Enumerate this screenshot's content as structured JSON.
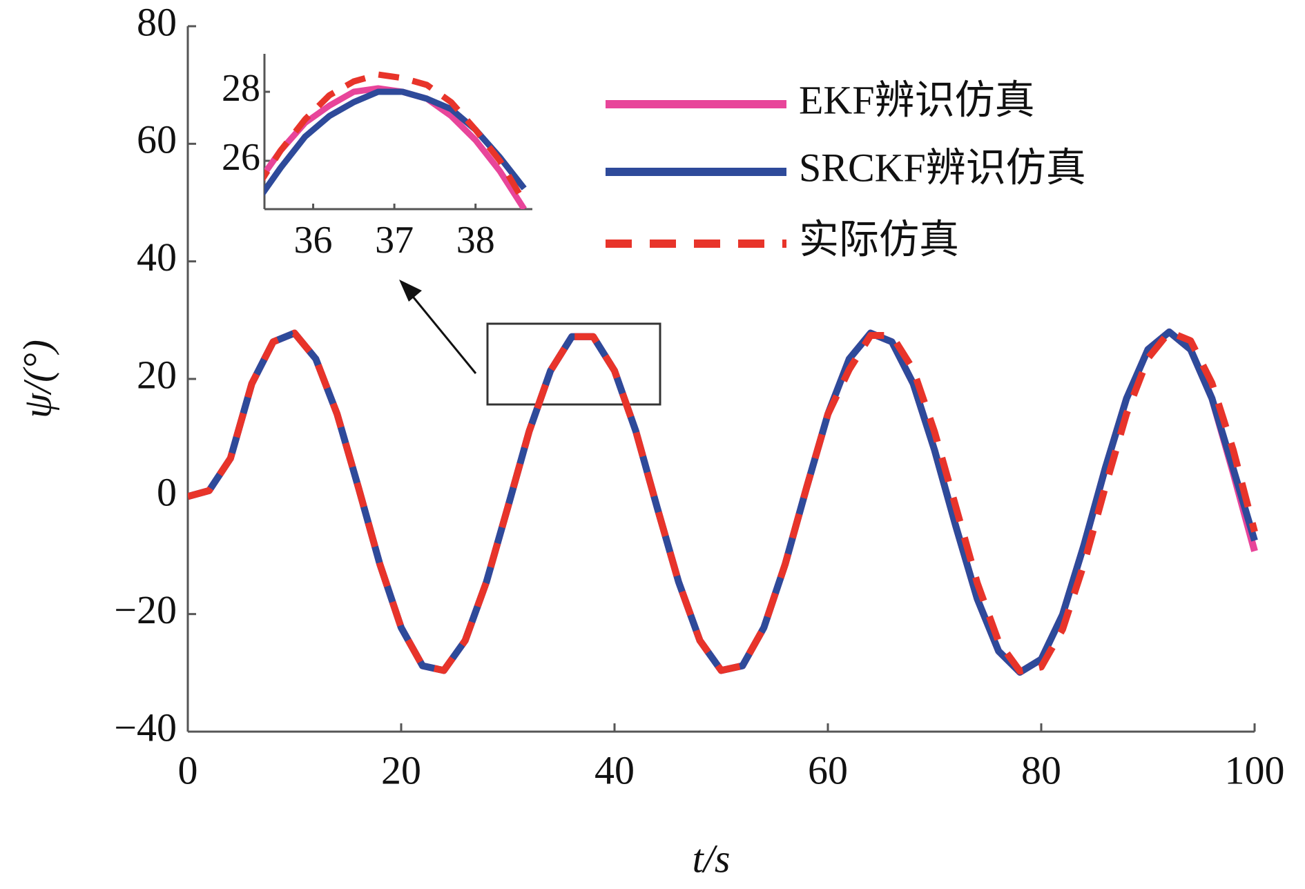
{
  "chart_data": [
    {
      "type": "line",
      "x_label": "t/s",
      "y_label": "ψ/(°)",
      "x": [
        0,
        2,
        4,
        6,
        8,
        10,
        12,
        14,
        16,
        18,
        20,
        22,
        24,
        26,
        28,
        30,
        32,
        34,
        36,
        38,
        40,
        42,
        44,
        46,
        48,
        50,
        52,
        54,
        56,
        58,
        60,
        62,
        64,
        66,
        68,
        70,
        72,
        74,
        76,
        78,
        80,
        82,
        84,
        86,
        88,
        90,
        92,
        94,
        96,
        98,
        100
      ],
      "series": [
        {
          "name": "EKF辨识仿真",
          "color": "#e8459a",
          "style": "solid",
          "values": [
            0,
            1.0,
            6.5,
            19.2,
            26.3,
            27.8,
            23.4,
            14.0,
            1.5,
            -11.5,
            -22.3,
            -28.8,
            -29.6,
            -24.5,
            -14.5,
            -1.8,
            11.1,
            21.4,
            27.2,
            27.2,
            21.4,
            11.1,
            -1.9,
            -14.5,
            -24.5,
            -29.6,
            -28.8,
            -22.3,
            -11.5,
            1.5,
            14.0,
            23.4,
            27.8,
            26.3,
            19.2,
            7.9,
            -5.1,
            -17.4,
            -26.3,
            -29.9,
            -27.7,
            -20.1,
            -8.3,
            4.8,
            16.7,
            25.0,
            28.0,
            25.0,
            16.7,
            4.0,
            -9.3
          ]
        },
        {
          "name": "SRCKF辨识仿真",
          "color": "#2e4a9a",
          "style": "solid",
          "values": [
            0,
            1.0,
            6.5,
            19.2,
            26.3,
            27.8,
            23.4,
            14.0,
            1.5,
            -11.5,
            -22.3,
            -28.8,
            -29.6,
            -24.5,
            -14.5,
            -1.8,
            11.1,
            21.4,
            27.2,
            27.2,
            21.4,
            11.1,
            -1.9,
            -14.5,
            -24.5,
            -29.6,
            -28.8,
            -22.3,
            -11.5,
            1.5,
            14.0,
            23.4,
            27.8,
            26.3,
            19.2,
            7.9,
            -5.1,
            -17.4,
            -26.3,
            -29.9,
            -27.7,
            -20.1,
            -8.3,
            4.8,
            16.7,
            25.0,
            28.0,
            25.0,
            16.7,
            4.7,
            -7.5
          ]
        },
        {
          "name": "实际仿真",
          "color": "#e8342a",
          "style": "dashed",
          "values": [
            0,
            1.0,
            6.5,
            19.2,
            26.3,
            27.8,
            23.4,
            14.0,
            1.5,
            -11.5,
            -22.3,
            -28.8,
            -29.6,
            -24.5,
            -14.5,
            -1.8,
            11.1,
            21.4,
            27.2,
            27.2,
            21.4,
            11.1,
            -1.9,
            -14.5,
            -24.5,
            -29.6,
            -28.8,
            -22.3,
            -11.5,
            1.5,
            14.0,
            21.6,
            27.4,
            27.4,
            21.6,
            11.0,
            -1.8,
            -14.7,
            -24.7,
            -29.7,
            -29.0,
            -22.6,
            -11.5,
            1.6,
            14.1,
            23.5,
            28.0,
            26.5,
            19.3,
            7.9,
            -6.0
          ]
        }
      ],
      "xlim": [
        0,
        100
      ],
      "xticks": [
        0,
        20,
        40,
        60,
        80,
        100
      ],
      "ylim": [
        -40,
        80
      ],
      "yticks": [
        {
          "value": -40,
          "label": "−40"
        },
        {
          "value": -20,
          "label": "−20"
        },
        0,
        20,
        40,
        60,
        80
      ],
      "legend": "upper right"
    },
    {
      "type": "line",
      "x": [
        35.3,
        35.6,
        35.9,
        36.2,
        36.5,
        36.8,
        37.1,
        37.4,
        37.7,
        38.0,
        38.3,
        38.6
      ],
      "series": [
        {
          "color": "#e8459a",
          "style": "solid",
          "values": [
            25.3,
            26.3,
            27.1,
            27.6,
            28.0,
            28.1,
            28.0,
            27.8,
            27.3,
            26.6,
            25.7,
            24.6
          ]
        },
        {
          "color": "#2e4a9a",
          "style": "solid",
          "values": [
            24.8,
            25.8,
            26.7,
            27.3,
            27.7,
            28.0,
            28.0,
            27.8,
            27.5,
            26.9,
            26.1,
            25.2
          ]
        },
        {
          "color": "#e8342a",
          "style": "dashed",
          "values": [
            25.2,
            26.3,
            27.2,
            27.9,
            28.3,
            28.5,
            28.4,
            28.2,
            27.7,
            26.9,
            26.0,
            24.8
          ]
        }
      ],
      "xlim": [
        35.4,
        38.7
      ],
      "xticks": [
        36,
        37,
        38
      ],
      "ylim": [
        24.6,
        28.8
      ],
      "yticks": [
        26,
        28
      ]
    }
  ]
}
